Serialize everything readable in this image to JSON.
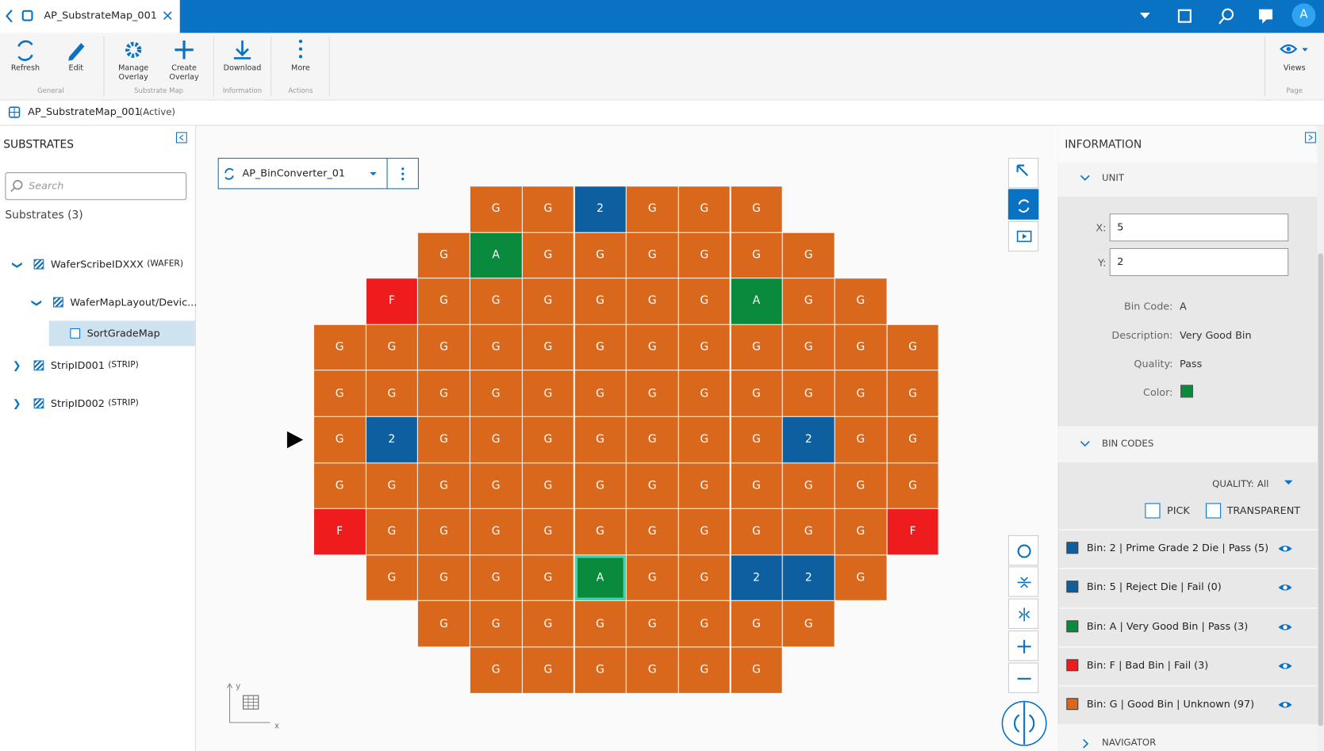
{
  "header": {
    "tab_title": "AP_SubstrateMap_001",
    "avatar": "A"
  },
  "toolbar": {
    "groups": [
      {
        "label": "General",
        "buttons": [
          "Refresh",
          "Edit"
        ]
      },
      {
        "label": "Substrate Map",
        "buttons": [
          "Manage Overlay",
          "Create Overlay"
        ]
      },
      {
        "label": "Information",
        "buttons": [
          "Download"
        ]
      },
      {
        "label": "Actions",
        "buttons": [
          "More"
        ]
      },
      {
        "label": "Page",
        "buttons": [
          "Views"
        ]
      }
    ]
  },
  "breadcrumb": {
    "name": "AP_SubstrateMap_001",
    "status": "(Active)"
  },
  "substrates": {
    "title": "SUBSTRATES",
    "search_placeholder": "Search",
    "count_label": "Substrates (3)",
    "tree": [
      {
        "label": "WaferScribeIDXXX",
        "tag": "(WAFER)"
      },
      {
        "label": "WaferMapLayout/Devic...",
        "tag": null
      },
      {
        "label": "SortGradeMap",
        "tag": null
      },
      {
        "label": "StripID001",
        "tag": "(STRIP)"
      },
      {
        "label": "StripID002",
        "tag": "(STRIP)"
      }
    ]
  },
  "map": {
    "converter": "AP_BinConverter_01",
    "axis_x": "x",
    "axis_y": "y",
    "rows": [
      [
        null,
        null,
        null,
        "G",
        "G",
        "2",
        "G",
        "G",
        "G",
        null,
        null,
        null
      ],
      [
        null,
        null,
        "G",
        "A",
        "G",
        "G",
        "G",
        "G",
        "G",
        "G",
        null,
        null
      ],
      [
        null,
        "F",
        "G",
        "G",
        "G",
        "G",
        "G",
        "G",
        "A",
        "G",
        "G",
        null
      ],
      [
        "G",
        "G",
        "G",
        "G",
        "G",
        "G",
        "G",
        "G",
        "G",
        "G",
        "G",
        "G"
      ],
      [
        "G",
        "G",
        "G",
        "G",
        "G",
        "G",
        "G",
        "G",
        "G",
        "G",
        "G",
        "G"
      ],
      [
        "G",
        "2",
        "G",
        "G",
        "G",
        "G",
        "G",
        "G",
        "G",
        "2",
        "G",
        "G"
      ],
      [
        "G",
        "G",
        "G",
        "G",
        "G",
        "G",
        "G",
        "G",
        "G",
        "G",
        "G",
        "G"
      ],
      [
        "F",
        "G",
        "G",
        "G",
        "G",
        "G",
        "G",
        "G",
        "G",
        "G",
        "G",
        "F"
      ],
      [
        null,
        "G",
        "G",
        "G",
        "G",
        "A",
        "G",
        "G",
        "2",
        "2",
        "G",
        null
      ],
      [
        null,
        null,
        "G",
        "G",
        "G",
        "G",
        "G",
        "G",
        "G",
        "G",
        null,
        null
      ],
      [
        null,
        null,
        null,
        "G",
        "G",
        "G",
        "G",
        "G",
        "G",
        null,
        null,
        null
      ]
    ]
  },
  "information": {
    "title": "INFORMATION",
    "unit": {
      "title": "UNIT",
      "x_label": "X:",
      "x": "5",
      "y_label": "Y:",
      "y": "2",
      "fields": [
        {
          "label": "Bin Code:",
          "value": "A"
        },
        {
          "label": "Description:",
          "value": "Very Good Bin"
        },
        {
          "label": "Quality:",
          "value": "Pass"
        }
      ],
      "color_label": "Color:",
      "color": "#0a8a3c"
    },
    "bin_codes": {
      "title": "BIN CODES",
      "quality_label": "QUALITY:",
      "quality": "All",
      "pick": "PICK",
      "transparent": "TRANSPARENT",
      "bins": [
        {
          "label": "Bin: 2 | Prime Grade 2 Die | Pass (5)",
          "color": "#0d5fa0"
        },
        {
          "label": "Bin: 5 | Reject Die | Fail (0)",
          "color": "#0d5fa0"
        },
        {
          "label": "Bin: A | Very Good Bin | Pass (3)",
          "color": "#0a8a3c"
        },
        {
          "label": "Bin: F | Bad Bin | Fail (3)",
          "color": "#ee1c1c"
        },
        {
          "label": "Bin: G | Good Bin | Unknown (97)",
          "color": "#d9681c"
        }
      ]
    },
    "navigator": "NAVIGATOR"
  }
}
